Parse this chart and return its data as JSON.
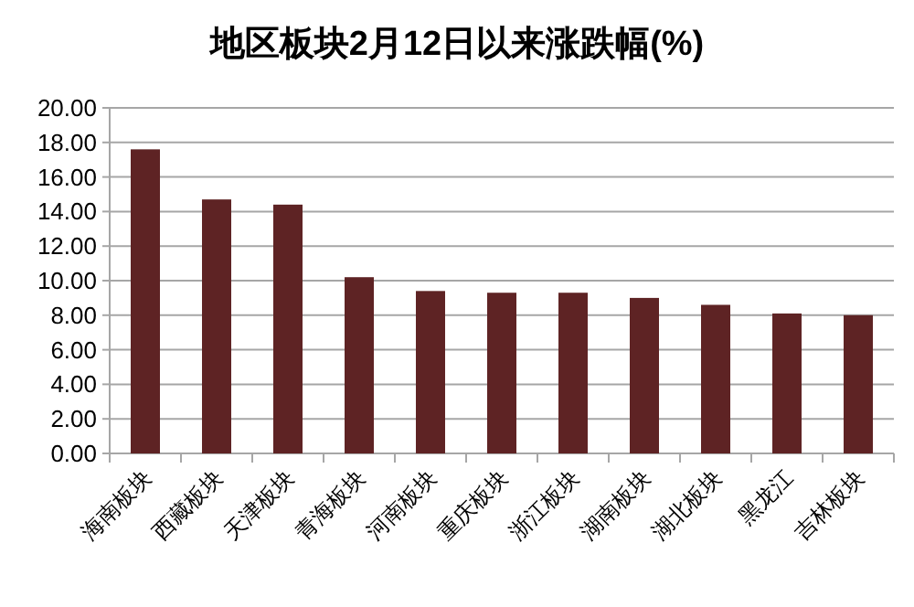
{
  "chart_data": {
    "type": "bar",
    "title": "地区板块2月12日以来涨跌幅(%)",
    "categories": [
      "海南板块",
      "西藏板块",
      "天津板块",
      "青海板块",
      "河南板块",
      "重庆板块",
      "浙江板块",
      "湖南板块",
      "湖北板块",
      "黑龙江",
      "吉林板块"
    ],
    "values": [
      17.6,
      14.7,
      14.4,
      10.2,
      9.4,
      9.3,
      9.3,
      9.0,
      8.6,
      8.1,
      8.0
    ],
    "color": "#5e2324",
    "ylim": [
      0,
      20
    ],
    "yticks": [
      {
        "value": 0,
        "label": "0.00"
      },
      {
        "value": 2,
        "label": "2.00"
      },
      {
        "value": 4,
        "label": "4.00"
      },
      {
        "value": 6,
        "label": "6.00"
      },
      {
        "value": 8,
        "label": "8.00"
      },
      {
        "value": 10,
        "label": "10.00"
      },
      {
        "value": 12,
        "label": "12.00"
      },
      {
        "value": 14,
        "label": "14.00"
      },
      {
        "value": 16,
        "label": "16.00"
      },
      {
        "value": 18,
        "label": "18.00"
      },
      {
        "value": 20,
        "label": "20.00"
      }
    ],
    "grid": "y"
  }
}
